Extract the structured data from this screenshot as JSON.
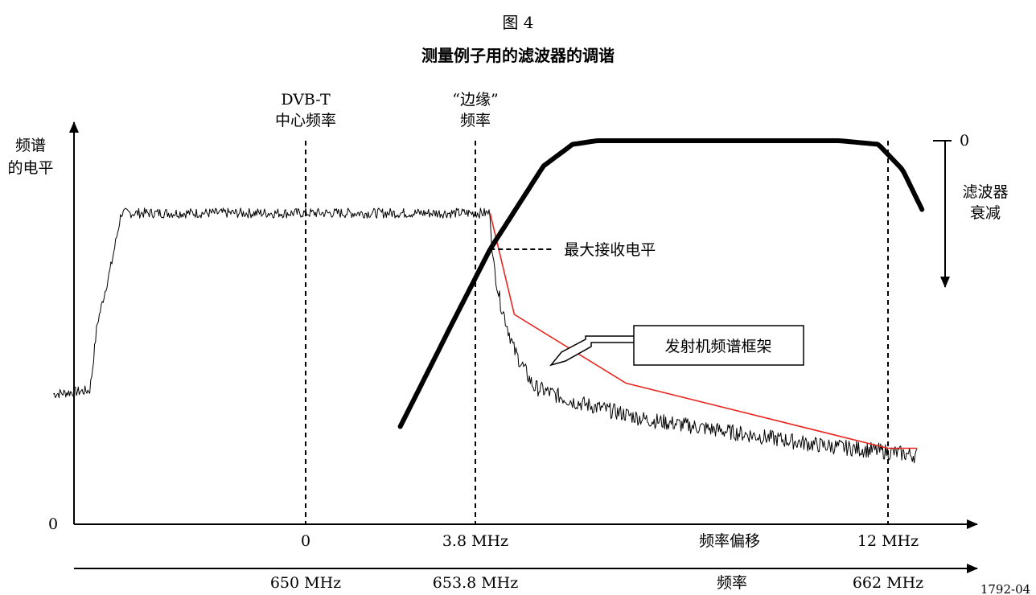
{
  "figure": {
    "number": "图 4",
    "title": "测量例子用的滤波器的调谐",
    "reference": "1792-04"
  },
  "chart_data": {
    "type": "line",
    "y_axis": {
      "label_lines": [
        "频谱",
        "的电平"
      ],
      "origin_label": "0"
    },
    "x_axis_offset": {
      "label": "频率偏移",
      "unit": "MHz",
      "ticks": [
        {
          "value": 0,
          "label": "0"
        },
        {
          "value": 3.8,
          "label": "3.8 MHz"
        },
        {
          "value": 12,
          "label": "12 MHz"
        }
      ]
    },
    "x_axis_frequency": {
      "label": "频率",
      "ticks": [
        {
          "value": 0,
          "label": "650 MHz"
        },
        {
          "value": 3.8,
          "label": "653.8 MHz"
        },
        {
          "value": 12,
          "label": "662 MHz"
        }
      ]
    },
    "vertical_markers": [
      {
        "value": 0,
        "label_lines": [
          "DVB-T",
          "中心频率"
        ]
      },
      {
        "value": 3.8,
        "label_lines": [
          "“边缘”",
          "频率"
        ]
      },
      {
        "value": 12,
        "label_lines": []
      }
    ],
    "right_axis": {
      "zero_label": "0",
      "label_lines": [
        "滤波器",
        "衰减"
      ]
    },
    "annotations": {
      "max_level": "最大接收电平",
      "mask_box": "发射机频谱框架"
    },
    "series": [
      {
        "style": "spectrum-noisy",
        "color": "#000000",
        "x": [
          -5.2,
          -4.45,
          -4.4,
          -4.3,
          -4.0,
          -3.8,
          3.8,
          3.85,
          4.0,
          4.3,
          4.7,
          5.5,
          7.0,
          9.0,
          10.5,
          12.0,
          12.6
        ],
        "y": [
          0.36,
          0.37,
          0.42,
          0.55,
          0.72,
          0.86,
          0.86,
          0.74,
          0.62,
          0.48,
          0.38,
          0.34,
          0.29,
          0.25,
          0.22,
          0.2,
          0.19
        ]
      },
      {
        "name": "发射机频谱框架",
        "style": "mask",
        "color": "#e8261f",
        "x": [
          3.8,
          4.3,
          6.6,
          12.0,
          12.6
        ],
        "y": [
          0.86,
          0.58,
          0.39,
          0.21,
          0.21
        ]
      },
      {
        "style": "filter-response",
        "color": "#000000",
        "x": [
          1.95,
          3.0,
          3.8,
          4.9,
          5.5,
          6.0,
          8.0,
          11.0,
          11.8,
          12.3,
          12.7
        ],
        "y": [
          0.27,
          0.55,
          0.76,
          0.99,
          1.05,
          1.06,
          1.06,
          1.06,
          1.05,
          0.98,
          0.87
        ]
      }
    ],
    "ylim": [
      0,
      1.15
    ],
    "xlim": [
      -5.2,
      13.7
    ],
    "grid": false,
    "legend": "none"
  }
}
